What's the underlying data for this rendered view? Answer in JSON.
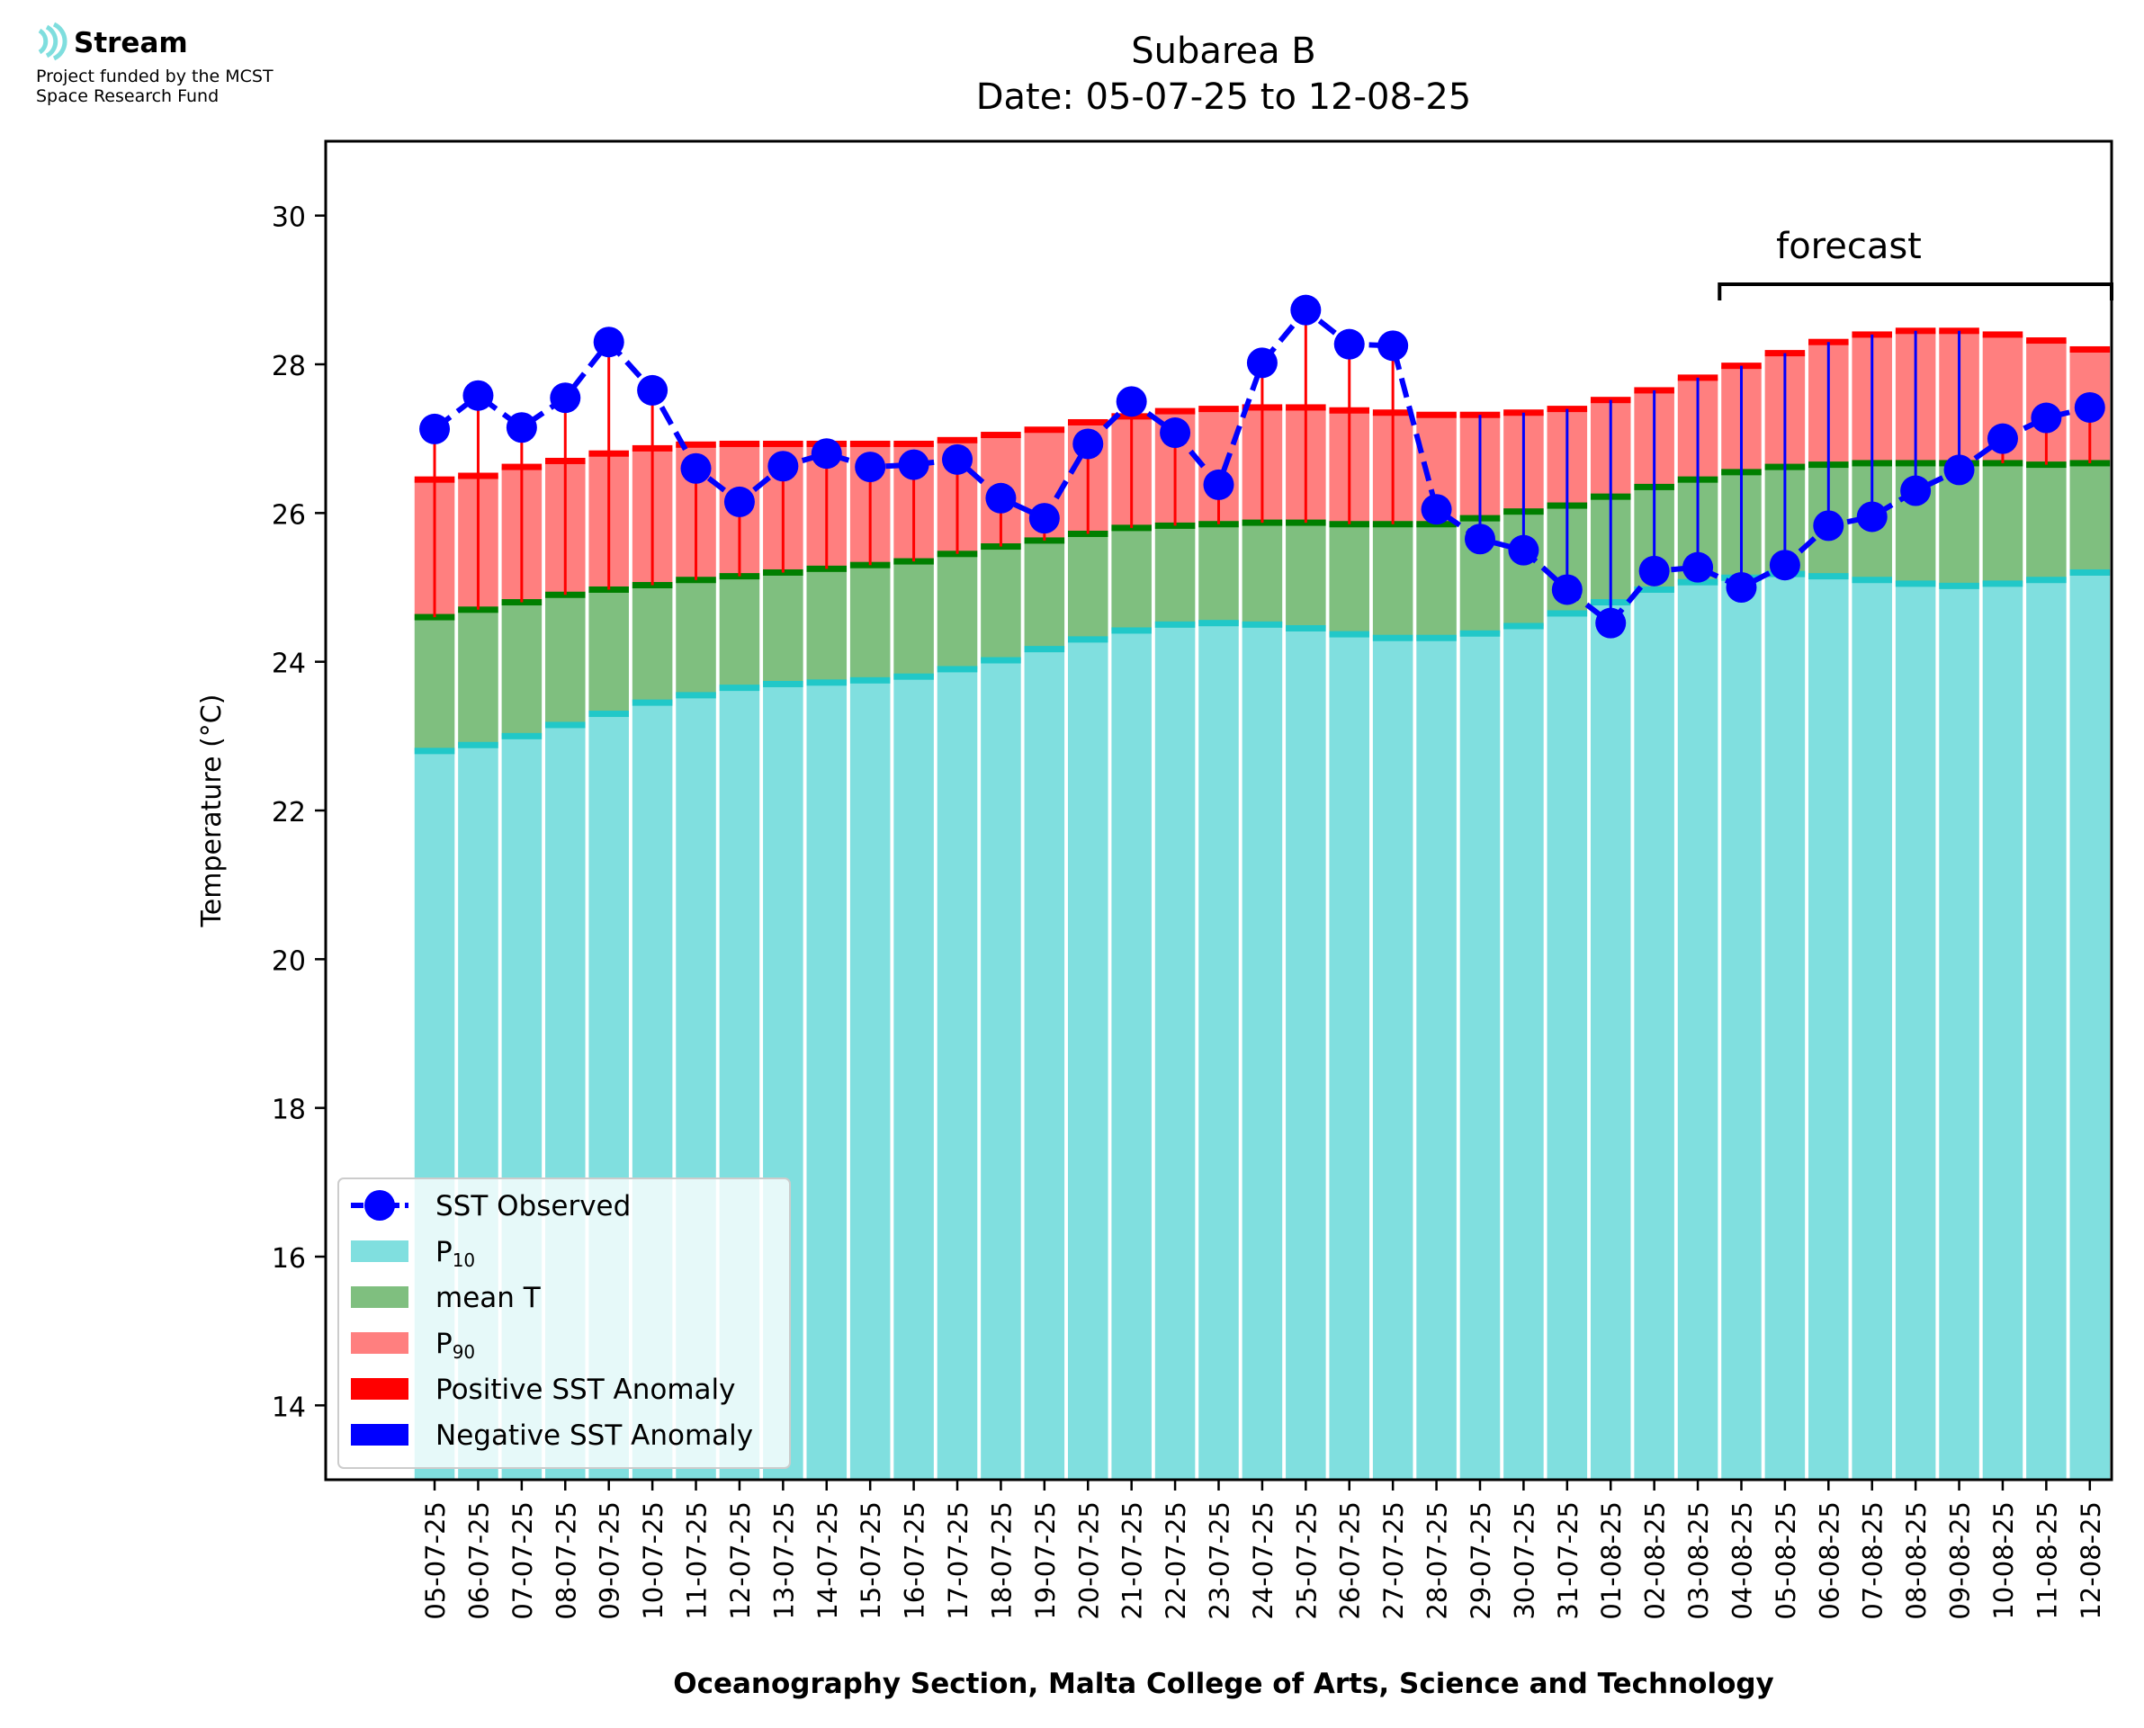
{
  "logo": {
    "name": "Stream",
    "funded_line1": "Project funded by the MCST",
    "funded_line2": "Space Research Fund",
    "icon": "stream-waves-icon"
  },
  "colors": {
    "p10": "#80dfdf",
    "p10_cap": "#21c8c8",
    "mean": "#7fbf7f",
    "mean_cap": "#007f00",
    "p90": "#ff7f7f",
    "p90_cap": "#ff0000",
    "observed": "#0000ff",
    "positive_anomaly": "#ff0000",
    "negative_anomaly": "#0000ff"
  },
  "chart_data": {
    "type": "bar",
    "title": "Subarea B",
    "subtitle": "Date: 05-07-25 to 12-08-25",
    "xlabel": "Oceanography Section, Malta College of Arts, Science and Technology",
    "ylabel": "Temperature (°C)",
    "ylim": [
      13,
      31
    ],
    "yticks": [
      14,
      16,
      18,
      20,
      22,
      24,
      26,
      28,
      30
    ],
    "legend_position": "lower-left",
    "grid": false,
    "annotation": "forecast",
    "forecast_range": [
      "04-08-25",
      "12-08-25"
    ],
    "categories": [
      "05-07-25",
      "06-07-25",
      "07-07-25",
      "08-07-25",
      "09-07-25",
      "10-07-25",
      "11-07-25",
      "12-07-25",
      "13-07-25",
      "14-07-25",
      "15-07-25",
      "16-07-25",
      "17-07-25",
      "18-07-25",
      "19-07-25",
      "20-07-25",
      "21-07-25",
      "22-07-25",
      "23-07-25",
      "24-07-25",
      "25-07-25",
      "26-07-25",
      "27-07-25",
      "28-07-25",
      "29-07-25",
      "30-07-25",
      "31-07-25",
      "01-08-25",
      "02-08-25",
      "03-08-25",
      "04-08-25",
      "05-08-25",
      "06-08-25",
      "07-08-25",
      "08-08-25",
      "09-08-25",
      "10-08-25",
      "11-08-25",
      "12-08-25"
    ],
    "legend": [
      "SST Observed",
      "P",
      "mean T",
      "P",
      "Positive SST Anomaly",
      "Negative SST Anomaly"
    ],
    "legend_subscripts": [
      "",
      "10",
      "",
      "90",
      "",
      ""
    ],
    "series": [
      {
        "name": "P10",
        "values": [
          22.8,
          22.88,
          23.0,
          23.15,
          23.3,
          23.45,
          23.55,
          23.65,
          23.7,
          23.72,
          23.75,
          23.8,
          23.9,
          24.02,
          24.17,
          24.3,
          24.42,
          24.5,
          24.52,
          24.5,
          24.45,
          24.37,
          24.32,
          24.32,
          24.38,
          24.48,
          24.65,
          24.8,
          24.97,
          25.07,
          25.13,
          25.18,
          25.15,
          25.1,
          25.05,
          25.02,
          25.05,
          25.1,
          25.2
        ]
      },
      {
        "name": "mean T",
        "values": [
          24.6,
          24.7,
          24.8,
          24.9,
          24.97,
          25.03,
          25.1,
          25.15,
          25.2,
          25.25,
          25.3,
          25.35,
          25.45,
          25.55,
          25.63,
          25.72,
          25.8,
          25.83,
          25.85,
          25.87,
          25.87,
          25.85,
          25.85,
          25.85,
          25.93,
          26.02,
          26.1,
          26.22,
          26.35,
          26.45,
          26.55,
          26.62,
          26.65,
          26.67,
          26.67,
          26.67,
          26.67,
          26.65,
          26.67
        ]
      },
      {
        "name": "P90",
        "values": [
          26.45,
          26.5,
          26.62,
          26.7,
          26.8,
          26.87,
          26.92,
          26.93,
          26.93,
          26.93,
          26.93,
          26.93,
          26.98,
          27.05,
          27.12,
          27.22,
          27.3,
          27.37,
          27.4,
          27.42,
          27.42,
          27.38,
          27.35,
          27.32,
          27.32,
          27.35,
          27.4,
          27.52,
          27.65,
          27.82,
          27.98,
          28.15,
          28.3,
          28.4,
          28.45,
          28.45,
          28.4,
          28.32,
          28.2
        ]
      },
      {
        "name": "SST Observed",
        "values": [
          27.13,
          27.58,
          27.15,
          27.55,
          28.3,
          27.65,
          26.6,
          26.15,
          26.63,
          26.8,
          26.62,
          26.65,
          26.72,
          26.2,
          25.93,
          26.93,
          27.5,
          27.08,
          26.38,
          28.02,
          28.73,
          28.27,
          28.25,
          26.05,
          25.65,
          25.5,
          24.97,
          24.52,
          25.22,
          25.27,
          25.0,
          25.3,
          25.83,
          25.95,
          26.3,
          26.58,
          27.0,
          27.28,
          27.42
        ]
      }
    ]
  }
}
